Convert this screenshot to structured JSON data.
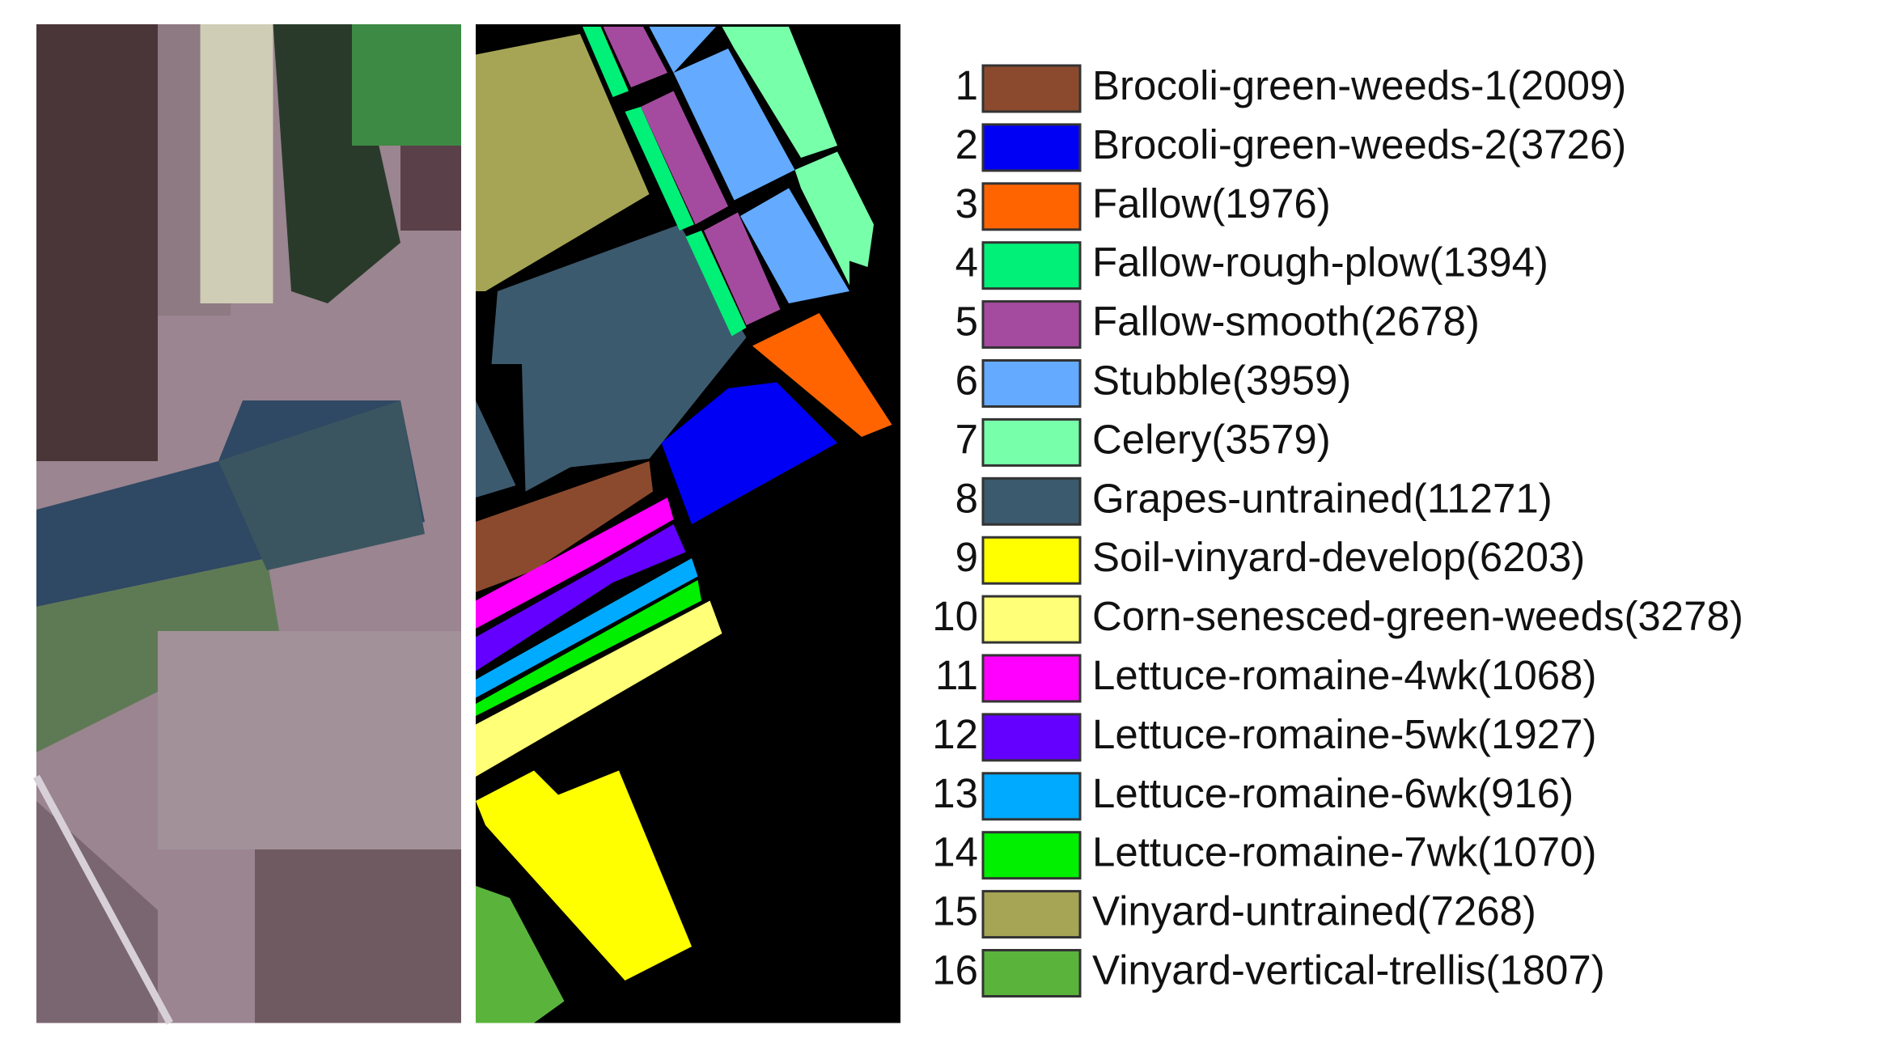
{
  "legend": [
    {
      "index": 1,
      "label": "Brocoli-green-weeds-1(2009)",
      "color": "#8b4a2e"
    },
    {
      "index": 2,
      "label": "Brocoli-green-weeds-2(3726)",
      "color": "#0000f5"
    },
    {
      "index": 3,
      "label": "Fallow(1976)",
      "color": "#ff6400"
    },
    {
      "index": 4,
      "label": "Fallow-rough-plow(1394)",
      "color": "#00f078"
    },
    {
      "index": 5,
      "label": "Fallow-smooth(2678)",
      "color": "#a54b9f"
    },
    {
      "index": 6,
      "label": "Stubble(3959)",
      "color": "#64aaff"
    },
    {
      "index": 7,
      "label": "Celery(3579)",
      "color": "#78ffaa"
    },
    {
      "index": 8,
      "label": "Grapes-untrained(11271)",
      "color": "#3c5a6e"
    },
    {
      "index": 9,
      "label": "Soil-vinyard-develop(6203)",
      "color": "#ffff00"
    },
    {
      "index": 10,
      "label": "Corn-senesced-green-weeds(3278)",
      "color": "#ffff78"
    },
    {
      "index": 11,
      "label": "Lettuce-romaine-4wk(1068)",
      "color": "#ff00ff"
    },
    {
      "index": 12,
      "label": "Lettuce-romaine-5wk(1927)",
      "color": "#6400ff"
    },
    {
      "index": 13,
      "label": "Lettuce-romaine-6wk(916)",
      "color": "#00aaff"
    },
    {
      "index": 14,
      "label": "Lettuce-romaine-7wk(1070)",
      "color": "#00f000"
    },
    {
      "index": 15,
      "label": "Vinyard-untrained(7268)",
      "color": "#a5a555"
    },
    {
      "index": 16,
      "label": "Vinyard-vertical-trellis(1807)",
      "color": "#5ab43c"
    }
  ]
}
